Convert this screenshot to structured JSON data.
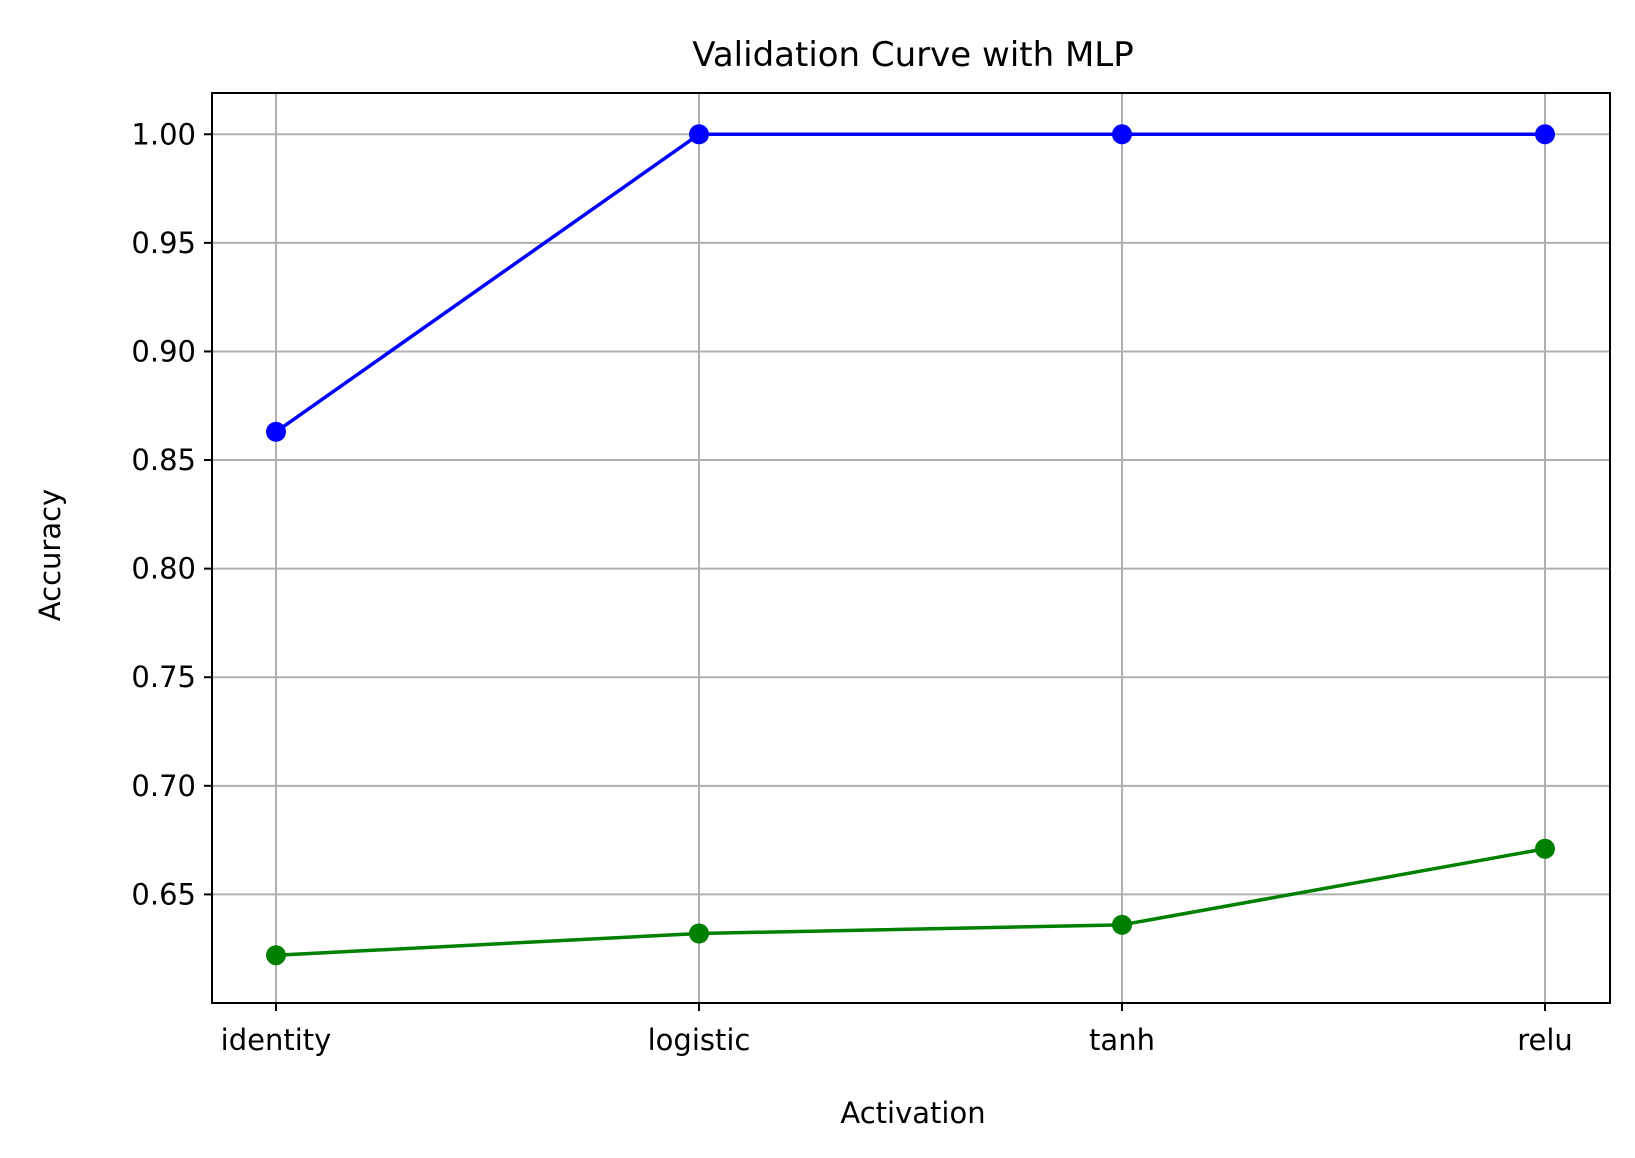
{
  "chart_data": {
    "type": "line",
    "title": "Validation Curve with MLP",
    "xlabel": "Activation",
    "ylabel": "Accuracy",
    "categories": [
      "identity",
      "logistic",
      "tanh",
      "relu"
    ],
    "ylim": [
      0.6,
      1.019
    ],
    "yticks": [
      "0.65",
      "0.70",
      "0.75",
      "0.80",
      "0.85",
      "0.90",
      "0.95",
      "1.00"
    ],
    "grid": true,
    "series": [
      {
        "color": "#0000ff",
        "marker": "circle",
        "values": [
          0.863,
          1.0,
          1.0,
          1.0
        ]
      },
      {
        "color": "#008000",
        "marker": "circle",
        "values": [
          0.622,
          0.632,
          0.636,
          0.671
        ]
      }
    ]
  }
}
